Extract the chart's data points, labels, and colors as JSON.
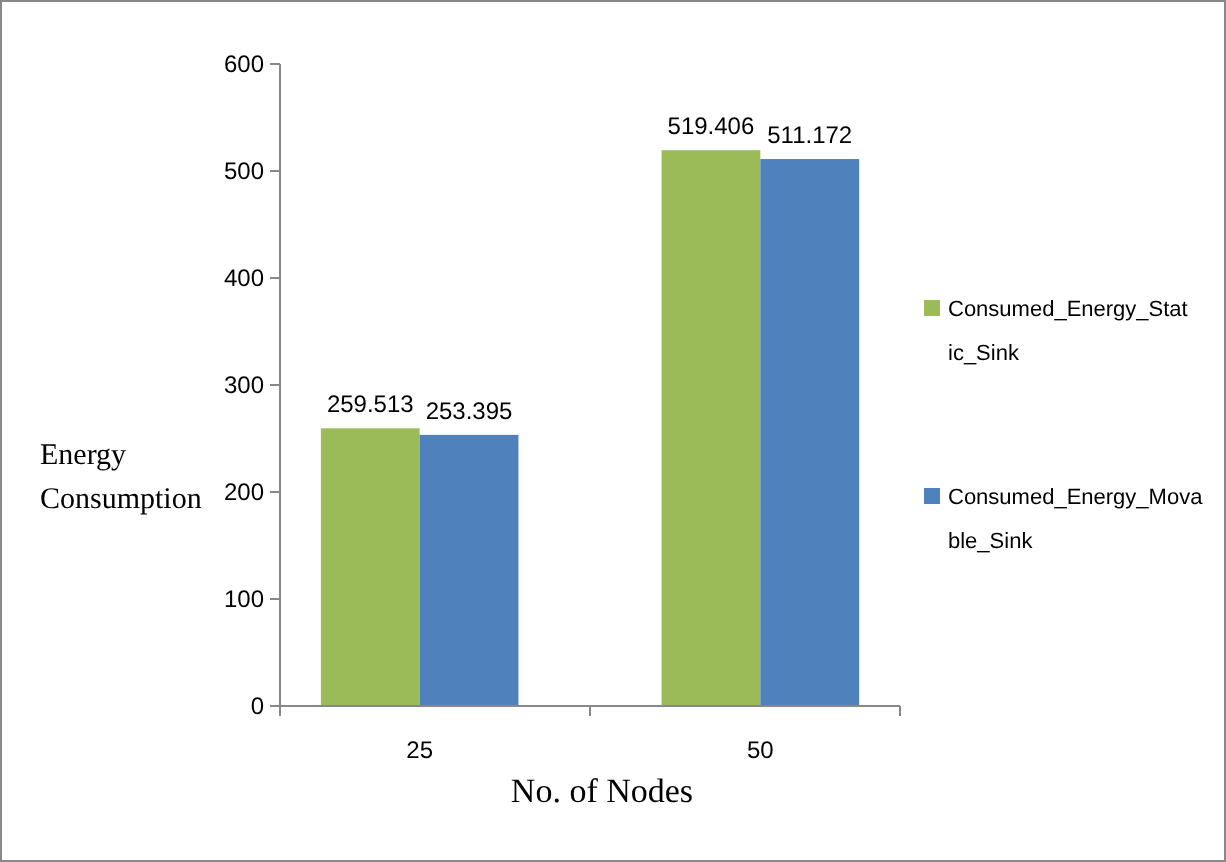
{
  "chart_data": {
    "type": "bar",
    "xlabel": "No. of Nodes",
    "ylabel": "Energy Consumption",
    "categories": [
      "25",
      "50"
    ],
    "series": [
      {
        "name": "Consumed_Energy_Static_Sink",
        "color": "#9bbb59",
        "values": [
          259.513,
          519.406
        ]
      },
      {
        "name": "Consumed_Energy_Movable_Sink",
        "color": "#4f81bd",
        "values": [
          253.395,
          511.172
        ]
      }
    ],
    "ylim": [
      0,
      600
    ],
    "yticks": [
      0,
      100,
      200,
      300,
      400,
      500,
      600
    ],
    "data_labels": true,
    "legend": "right"
  }
}
